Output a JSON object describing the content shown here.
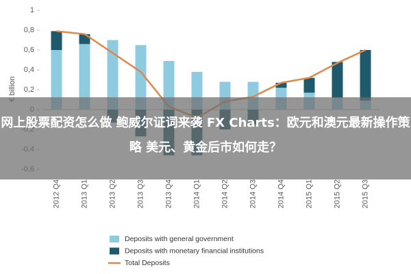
{
  "chart_data": {
    "type": "bar",
    "y_label": "€ billion",
    "categories": [
      "2012 Q4",
      "2013 Q1",
      "2013 Q2",
      "2013 Q3",
      "2013 Q4",
      "2014 Q1",
      "2014 Q2",
      "2014 Q3",
      "2014 Q4",
      "2015 Q1",
      "2015 Q2",
      "2015 Q3"
    ],
    "series": [
      {
        "name": "Deposits with general government",
        "type": "bar",
        "color": "#8fcbe0",
        "values": [
          0.6,
          0.66,
          0.7,
          0.65,
          0.49,
          0.38,
          0.28,
          0.28,
          0.22,
          0.17,
          0.12,
          0.09
        ]
      },
      {
        "name": "Deposits with monetary financial institutions",
        "type": "bar",
        "color": "#1e5a6c",
        "values": [
          0.19,
          0.1,
          -0.13,
          -0.27,
          -0.46,
          -0.46,
          -0.2,
          -0.15,
          0.05,
          0.15,
          0.36,
          0.51
        ]
      },
      {
        "name": "Total Deposits",
        "type": "line",
        "color": "#e0874a",
        "values": [
          0.79,
          0.76,
          0.57,
          0.38,
          0.03,
          -0.08,
          0.08,
          0.13,
          0.27,
          0.32,
          0.47,
          0.6
        ]
      }
    ],
    "ylim": [
      -0.6,
      1
    ],
    "yticks": [
      {
        "value": -0.6,
        "label": "-0,6"
      },
      {
        "value": -0.4,
        "label": "-0,4"
      },
      {
        "value": -0.2,
        "label": "-0,2"
      },
      0,
      {
        "value": 0.2,
        "label": "0,2"
      },
      {
        "value": 0.4,
        "label": "0,4"
      },
      {
        "value": 0.6,
        "label": "0,6"
      },
      {
        "value": 0.8,
        "label": "0,8"
      },
      1
    ],
    "stacked": true
  },
  "overlay_title": "网上股票配资怎么做 鲍威尔证词来袭 FX Charts：欧元和澳元最新操作策略 美元、黄金后市如何走？"
}
